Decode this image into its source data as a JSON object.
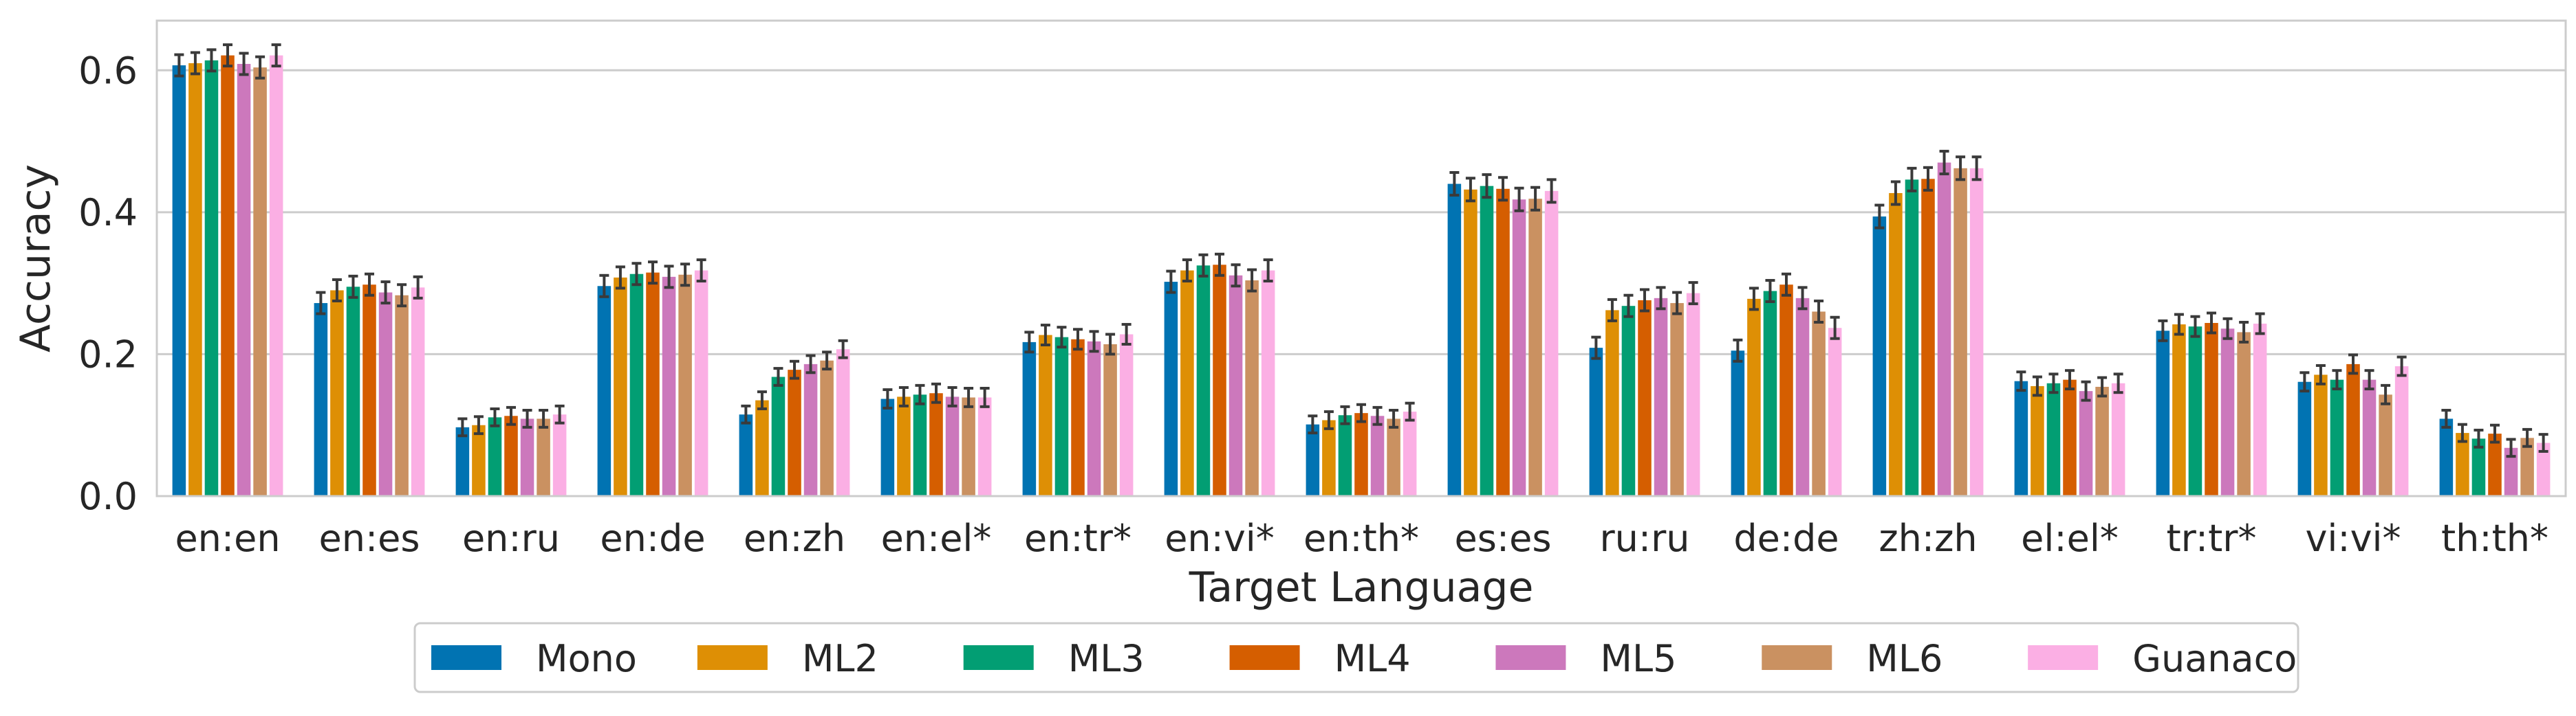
{
  "chart_data": {
    "type": "bar",
    "xlabel": "Target Language",
    "ylabel": "Accuracy",
    "ylim": [
      0,
      0.67
    ],
    "yticks": [
      "0.0",
      "0.2",
      "0.4",
      "0.6"
    ],
    "ytick_values": [
      0,
      0.2,
      0.4,
      0.6
    ],
    "grid": "horizontal",
    "legend_position": "bottom-center",
    "error_bars": true,
    "categories": [
      "en:en",
      "en:es",
      "en:ru",
      "en:de",
      "en:zh",
      "en:el*",
      "en:tr*",
      "en:vi*",
      "en:th*",
      "es:es",
      "ru:ru",
      "de:de",
      "zh:zh",
      "el:el*",
      "tr:tr*",
      "vi:vi*",
      "th:th*"
    ],
    "series": [
      {
        "name": "Mono",
        "color": "#0173b2",
        "values": [
          0.607,
          0.272,
          0.097,
          0.296,
          0.115,
          0.137,
          0.217,
          0.302,
          0.101,
          0.44,
          0.209,
          0.205,
          0.394,
          0.162,
          0.233,
          0.161,
          0.109
        ],
        "errors": [
          0.015,
          0.015,
          0.012,
          0.015,
          0.012,
          0.013,
          0.014,
          0.015,
          0.012,
          0.016,
          0.015,
          0.015,
          0.016,
          0.013,
          0.014,
          0.013,
          0.012
        ]
      },
      {
        "name": "ML2",
        "color": "#de8f05",
        "values": [
          0.61,
          0.29,
          0.1,
          0.308,
          0.135,
          0.14,
          0.227,
          0.318,
          0.107,
          0.432,
          0.262,
          0.278,
          0.427,
          0.155,
          0.242,
          0.171,
          0.089
        ]
      },
      {
        "name": "ML3",
        "color": "#029e73",
        "values": [
          0.614,
          0.295,
          0.111,
          0.313,
          0.168,
          0.143,
          0.224,
          0.325,
          0.114,
          0.437,
          0.268,
          0.289,
          0.446,
          0.159,
          0.239,
          0.164,
          0.081
        ]
      },
      {
        "name": "ML4",
        "color": "#d55e00",
        "values": [
          0.621,
          0.298,
          0.113,
          0.315,
          0.178,
          0.145,
          0.221,
          0.326,
          0.117,
          0.433,
          0.276,
          0.298,
          0.447,
          0.164,
          0.244,
          0.186,
          0.088
        ]
      },
      {
        "name": "ML5",
        "color": "#cc78bc",
        "values": [
          0.609,
          0.287,
          0.109,
          0.309,
          0.186,
          0.14,
          0.218,
          0.311,
          0.113,
          0.418,
          0.279,
          0.279,
          0.47,
          0.148,
          0.236,
          0.164,
          0.068
        ]
      },
      {
        "name": "ML6",
        "color": "#ca9161",
        "values": [
          0.604,
          0.283,
          0.109,
          0.312,
          0.191,
          0.139,
          0.214,
          0.304,
          0.109,
          0.419,
          0.272,
          0.26,
          0.462,
          0.154,
          0.231,
          0.143,
          0.082
        ]
      },
      {
        "name": "Guanaco",
        "color": "#fbafe4",
        "values": [
          0.621,
          0.294,
          0.115,
          0.318,
          0.207,
          0.139,
          0.228,
          0.318,
          0.119,
          0.43,
          0.286,
          0.237,
          0.462,
          0.159,
          0.243,
          0.183,
          0.075
        ]
      }
    ]
  }
}
